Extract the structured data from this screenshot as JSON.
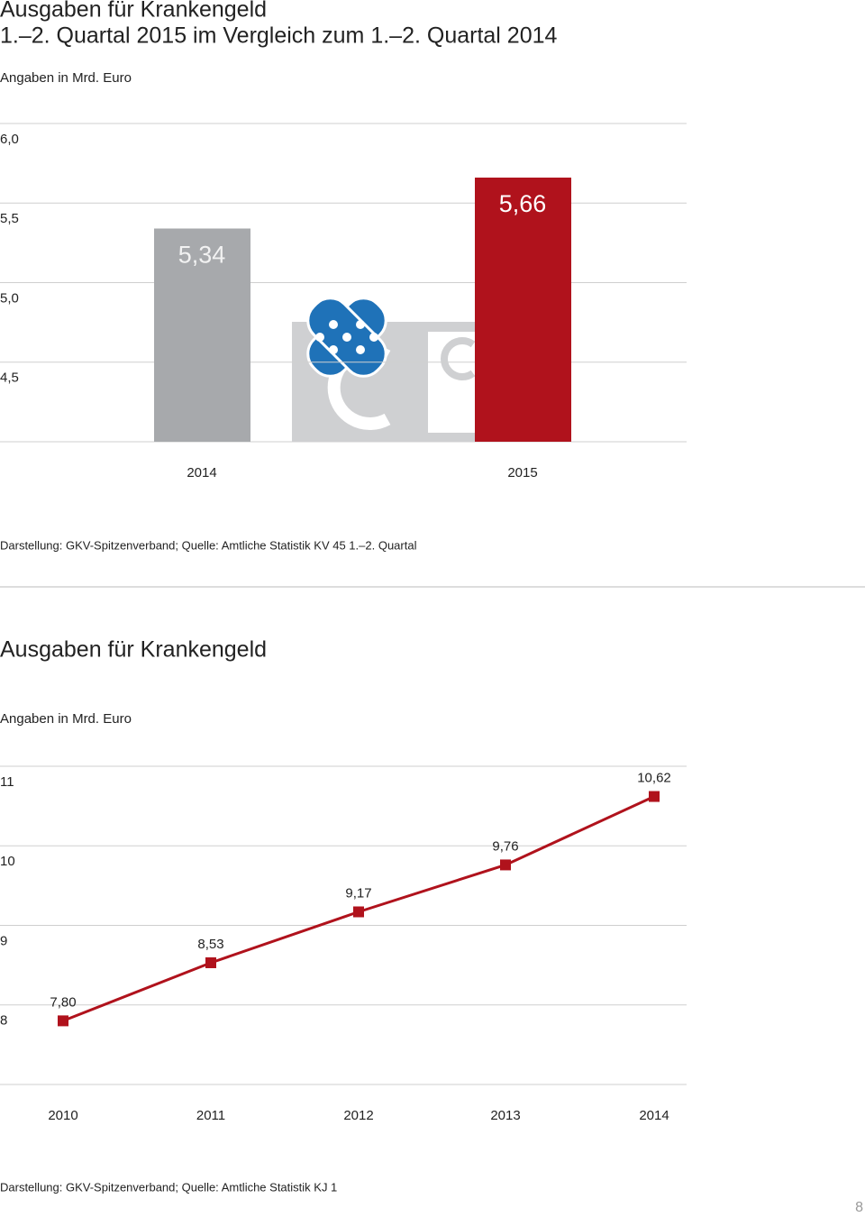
{
  "chart_data": [
    {
      "type": "bar",
      "title": [
        "Ausgaben für Krankengeld",
        "1.–2. Quartal 2015 im Vergleich zum 1.–2. Quartal 2014"
      ],
      "subtitle": "Angaben in Mrd. Euro",
      "categories": [
        "2014",
        "2015"
      ],
      "values": [
        5.34,
        5.66
      ],
      "value_labels": [
        "5,34",
        "5,66"
      ],
      "colors": [
        "#a7a9ac",
        "#b0121c"
      ],
      "ylim": [
        4.0,
        6.0
      ],
      "yticks": [
        {
          "value": 6.0,
          "label": "6,0"
        },
        {
          "value": 5.5,
          "label": "5,5"
        },
        {
          "value": 5.0,
          "label": "5,0"
        },
        {
          "value": 4.5,
          "label": "4,5"
        }
      ],
      "grid": true,
      "source": "Darstellung: GKV-Spitzenverband; Quelle: Amtliche Statistik KV 45 1.–2. Quartal"
    },
    {
      "type": "line",
      "title": [
        "Ausgaben für Krankengeld"
      ],
      "subtitle": "Angaben in Mrd. Euro",
      "categories": [
        "2010",
        "2011",
        "2012",
        "2013",
        "2014"
      ],
      "values": [
        7.8,
        8.53,
        9.17,
        9.76,
        10.62
      ],
      "value_labels": [
        "7,80",
        "8,53",
        "9,17",
        "9,76",
        "10,62"
      ],
      "color": "#b0121c",
      "ylim": [
        7,
        11
      ],
      "yticks": [
        11,
        10,
        9,
        8
      ],
      "grid": true,
      "source": "Darstellung: GKV-Spitzenverband; Quelle: Amtliche Statistik KJ 1"
    }
  ],
  "page_number": "8"
}
